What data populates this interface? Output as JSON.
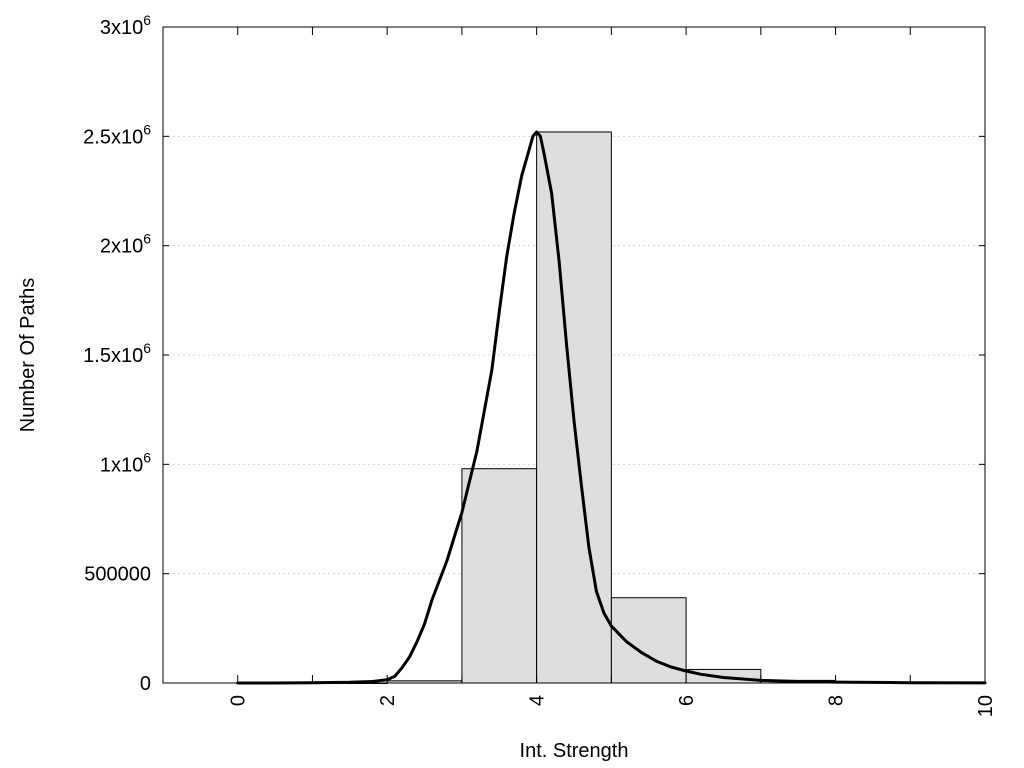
{
  "chart_data": {
    "type": "bar",
    "title": "",
    "xlabel": "Int. Strength",
    "ylabel": "Number Of Paths",
    "xlim": [
      -1,
      10
    ],
    "ylim": [
      0,
      3000000
    ],
    "grid": "horizontal-dotted",
    "legend": "none",
    "x_ticks": [
      {
        "value": 0,
        "label": "0"
      },
      {
        "value": 2,
        "label": "2"
      },
      {
        "value": 4,
        "label": "4"
      },
      {
        "value": 6,
        "label": "6"
      },
      {
        "value": 8,
        "label": "8"
      },
      {
        "value": 10,
        "label": "10"
      }
    ],
    "x_minor_ticks": [
      1,
      3,
      5,
      7,
      9
    ],
    "y_ticks": [
      {
        "value": 0,
        "label": "0"
      },
      {
        "value": 500000,
        "label": "500000"
      },
      {
        "value": 1000000,
        "mantissa": "1x10",
        "exponent": "6"
      },
      {
        "value": 1500000,
        "mantissa": "1.5x10",
        "exponent": "6"
      },
      {
        "value": 2000000,
        "mantissa": "2x10",
        "exponent": "6"
      },
      {
        "value": 2500000,
        "mantissa": "2.5x10",
        "exponent": "6"
      },
      {
        "value": 3000000,
        "mantissa": "3x10",
        "exponent": "6"
      }
    ],
    "bars": [
      {
        "x": 0,
        "value": 0
      },
      {
        "x": 1,
        "value": 0
      },
      {
        "x": 2,
        "value": 10000
      },
      {
        "x": 3,
        "value": 980000
      },
      {
        "x": 4,
        "value": 2520000
      },
      {
        "x": 5,
        "value": 390000
      },
      {
        "x": 6,
        "value": 62000
      },
      {
        "x": 7,
        "value": 12000
      },
      {
        "x": 8,
        "value": 2500
      },
      {
        "x": 9,
        "value": 500
      }
    ],
    "bar_width": 1,
    "fit_curve": {
      "x": [
        0,
        0.5,
        1,
        1.5,
        1.8,
        2,
        2.1,
        2.2,
        2.3,
        2.4,
        2.5,
        2.6,
        2.8,
        3,
        3.2,
        3.4,
        3.5,
        3.6,
        3.7,
        3.8,
        3.9,
        3.95,
        4,
        4.05,
        4.1,
        4.2,
        4.3,
        4.4,
        4.5,
        4.6,
        4.7,
        4.8,
        4.9,
        5,
        5.2,
        5.4,
        5.6,
        5.8,
        6,
        6.2,
        6.5,
        7,
        7.5,
        8,
        9,
        10
      ],
      "y": [
        0,
        0,
        1000,
        3000,
        7000,
        15000,
        30000,
        70000,
        120000,
        190000,
        270000,
        380000,
        560000,
        780000,
        1060000,
        1430000,
        1700000,
        1950000,
        2150000,
        2320000,
        2440000,
        2500000,
        2520000,
        2500000,
        2420000,
        2240000,
        1930000,
        1550000,
        1200000,
        900000,
        620000,
        420000,
        320000,
        260000,
        190000,
        140000,
        100000,
        73000,
        55000,
        40000,
        25000,
        12000,
        7000,
        4000,
        1500,
        300
      ]
    }
  }
}
